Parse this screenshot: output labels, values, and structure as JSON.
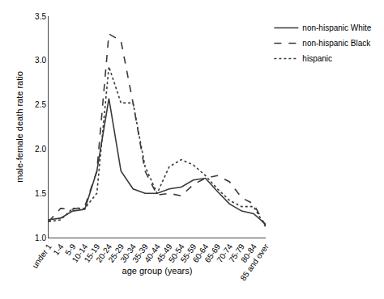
{
  "chart_data": {
    "type": "line",
    "categories": [
      "under 1",
      "1-4",
      "5-9",
      "10-14",
      "15-19",
      "20-24",
      "25-29",
      "30-34",
      "35-39",
      "40-44",
      "45-49",
      "50-54",
      "55-59",
      "60-64",
      "65-69",
      "70-74",
      "75-79",
      "80-84",
      "85 and over"
    ],
    "series": [
      {
        "name": "non-hispanic White",
        "color": "#3a3a3a",
        "line_style": "solid",
        "values": [
          1.2,
          1.22,
          1.3,
          1.32,
          1.75,
          2.57,
          1.75,
          1.55,
          1.5,
          1.5,
          1.55,
          1.57,
          1.65,
          1.67,
          1.52,
          1.38,
          1.3,
          1.27,
          1.15
        ]
      },
      {
        "name": "non-hispanic Black",
        "color": "#3a3a3a",
        "line_style": "dash",
        "values": [
          1.18,
          1.33,
          1.32,
          1.35,
          1.75,
          3.3,
          3.22,
          2.52,
          1.75,
          1.48,
          1.5,
          1.47,
          1.6,
          1.67,
          1.7,
          1.63,
          1.45,
          1.38,
          1.13
        ]
      },
      {
        "name": "hispanic",
        "color": "#3a3a3a",
        "line_style": "dot",
        "values": [
          1.18,
          1.2,
          1.33,
          1.33,
          1.5,
          2.93,
          2.52,
          2.52,
          1.8,
          1.5,
          1.8,
          1.88,
          1.82,
          1.7,
          1.55,
          1.42,
          1.35,
          1.35,
          1.12
        ]
      }
    ],
    "x_label": "age group (years)",
    "y_label": "male-female death rate ratio",
    "ylim": [
      1.0,
      3.5
    ],
    "yticks": [
      {
        "value": 1.0,
        "label": "1.0"
      },
      1.5,
      {
        "value": 2.0,
        "label": "2.0"
      },
      2.5,
      {
        "value": 3.0,
        "label": "3.0"
      },
      3.5
    ],
    "grid": false,
    "legend": "upper right"
  }
}
